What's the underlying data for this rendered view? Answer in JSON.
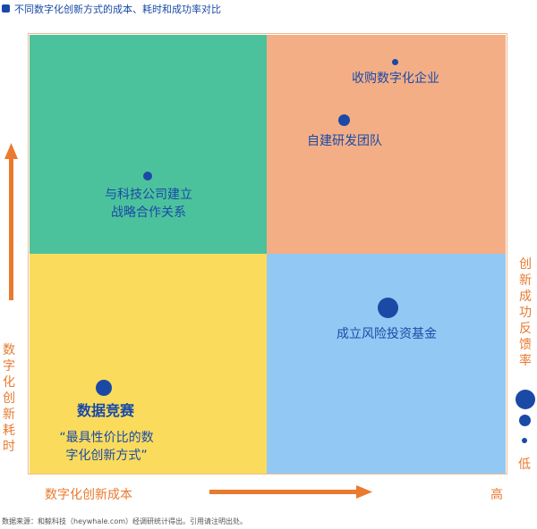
{
  "legend": {
    "label": "不同数字化创新方式的成本、耗时和成功率对比"
  },
  "quadrants": {
    "top_left": {
      "title_line1": "与科技公司建立",
      "title_line2": "战略合作关系"
    },
    "top_right_a": {
      "title": "收购数字化企业"
    },
    "top_right_b": {
      "title": "自建研发团队"
    },
    "bottom_right": {
      "title": "成立风险投资基金"
    },
    "bottom_left": {
      "title": "数据竞赛",
      "quote_line1": "“最具性价比的数",
      "quote_line2": "字化创新方式”"
    }
  },
  "axes": {
    "y_label": [
      "数",
      "字",
      "化",
      "创",
      "新",
      "耗",
      "时"
    ],
    "x_label": "数字化创新成本",
    "x_high": "高",
    "success_label": [
      "创",
      "新",
      "成",
      "功",
      "反",
      "馈",
      "率"
    ],
    "success_low": "低"
  },
  "footnote": "数据来源：和鲸科技（heywhale.com）经调研统计得出。引用请注明出处。",
  "colors": {
    "green": "#4cc29c",
    "orange": "#f4ae86",
    "yellow": "#fbdb5c",
    "blue": "#92c9f4",
    "accent": "#1a4aa6",
    "axis": "#e97a2e"
  }
}
